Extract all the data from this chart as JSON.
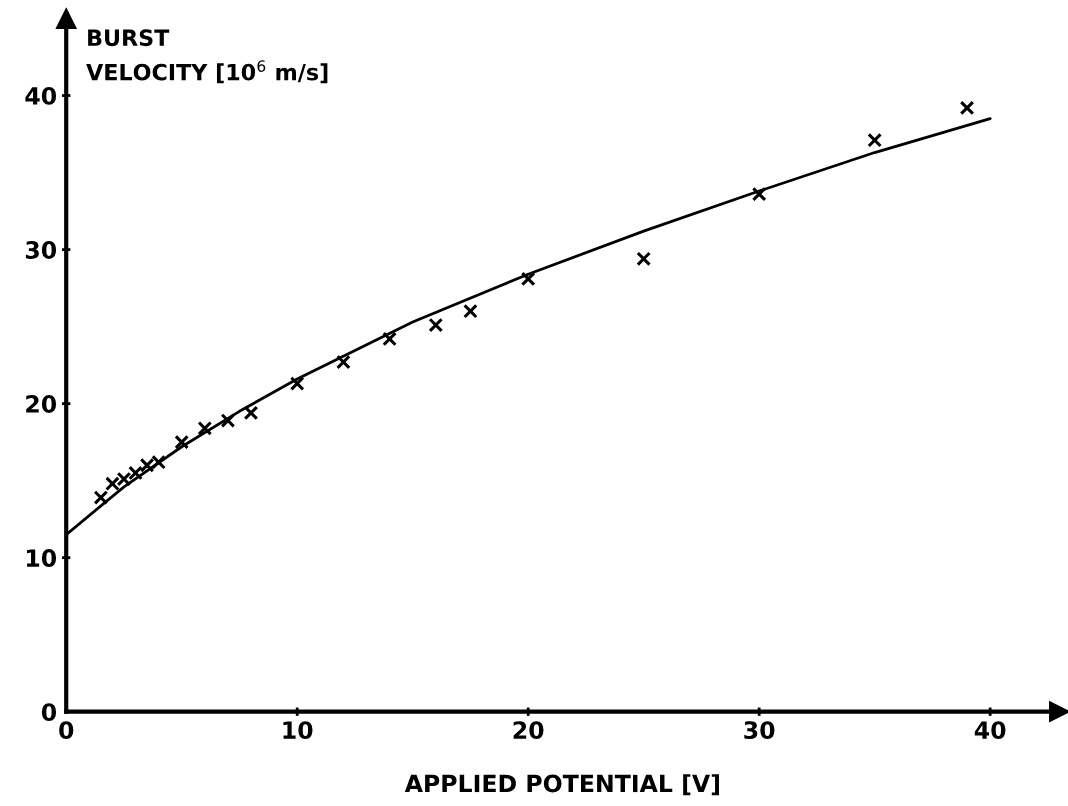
{
  "chart_data": {
    "type": "scatter",
    "xlabel": "APPLIED POTENTIAL [V]",
    "ylabel": "BURST\nVELOCITY [10$^{6}$ m/s]",
    "xlim": [
      0,
      43
    ],
    "ylim": [
      0,
      45
    ],
    "xticks": [
      0,
      10,
      20,
      30,
      40
    ],
    "yticks": [
      0,
      10,
      20,
      30,
      40
    ],
    "grid": false,
    "legend": false,
    "series": [
      {
        "marker": "cross",
        "color": "#000000",
        "x": [
          1.5,
          2,
          2.5,
          3,
          3.5,
          4,
          5,
          6,
          7,
          8,
          10,
          12,
          14,
          16,
          17.5,
          20,
          25,
          30,
          35,
          39
        ],
        "values": [
          13.9,
          14.8,
          15.1,
          15.5,
          16.0,
          16.2,
          17.5,
          18.4,
          18.9,
          19.4,
          21.3,
          22.7,
          24.2,
          25.1,
          26.0,
          28.1,
          29.4,
          33.6,
          37.1,
          39.2
        ]
      },
      {
        "type": "line",
        "marker": "none",
        "line_style": "solid",
        "color": "#000000",
        "x": [
          0,
          2.5,
          5,
          7.5,
          10,
          15,
          20,
          25,
          30,
          35,
          40
        ],
        "values": [
          11.5,
          14.6,
          17.2,
          19.5,
          21.6,
          25.3,
          28.4,
          31.2,
          33.8,
          36.3,
          38.5
        ]
      }
    ]
  }
}
